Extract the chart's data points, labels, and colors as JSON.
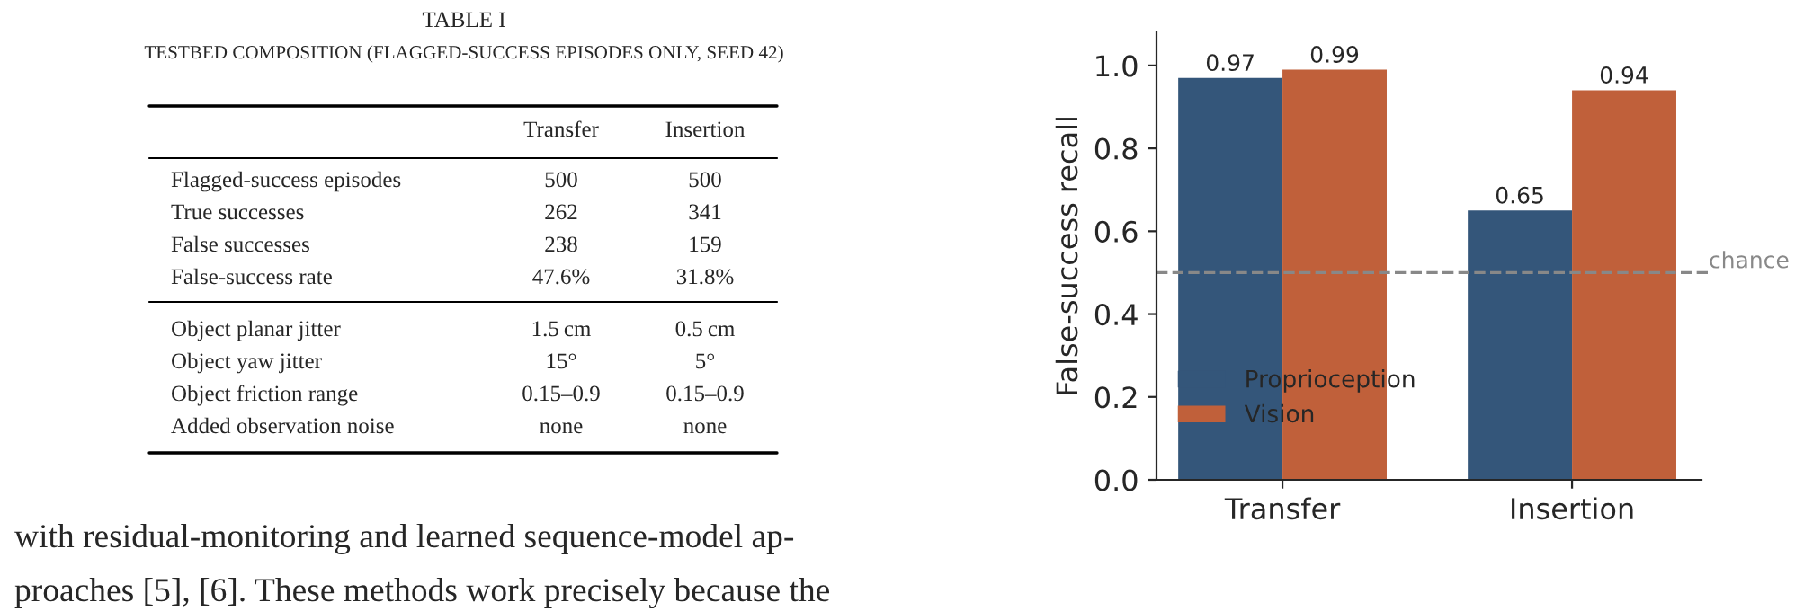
{
  "chart_data": [
    {
      "type": "other",
      "title": "TABLE I",
      "subtitle": "TESTBED COMPOSITION (FLAGGED-SUCCESS EPISODES ONLY, SEED 42)",
      "categories": [
        "Transfer",
        "Insertion"
      ],
      "y_categories": [
        "Flagged-success episodes",
        "True successes",
        "False successes",
        "False-success rate",
        "Object planar jitter",
        "Object yaw jitter",
        "Object friction range",
        "Added observation noise"
      ],
      "cell_labels": [
        [
          "500",
          "500"
        ],
        [
          "262",
          "341"
        ],
        [
          "238",
          "159"
        ],
        [
          "47.6%",
          "31.8%"
        ],
        [
          "1.5 cm",
          "0.5 cm"
        ],
        [
          "15°",
          "5°"
        ],
        [
          "0.15–0.9",
          "0.15–0.9"
        ],
        [
          "none",
          "none"
        ]
      ],
      "annotations": [
        "with residual-monitoring and learned sequence-model ap-",
        "proaches [5], [6]. These methods work precisely because the"
      ]
    },
    {
      "type": "bar",
      "categories": [
        "Transfer",
        "Insertion"
      ],
      "ylabel": "False-success recall",
      "series": [
        {
          "name": "Proprioception",
          "color": "#34567a",
          "values": [
            0.97,
            0.65
          ]
        },
        {
          "name": "Vision",
          "color": "#c0603a",
          "values": [
            0.99,
            0.94
          ]
        }
      ],
      "ylim": [
        0,
        1.08
      ],
      "yticks": [
        {
          "value": 0,
          "label": "0.0"
        },
        {
          "value": 0.2,
          "label": "0.2"
        },
        {
          "value": 0.4,
          "label": "0.4"
        },
        {
          "value": 0.6,
          "label": "0.6"
        },
        {
          "value": 0.8,
          "label": "0.8"
        },
        {
          "value": 1,
          "label": "1.0"
        }
      ],
      "ref_lines": [
        {
          "axis": "y",
          "value": 0.5,
          "label": "chance",
          "color": "#888888",
          "line_style": "dashed"
        }
      ],
      "data_labels": true,
      "legend": "bottom left",
      "grid": false
    }
  ]
}
